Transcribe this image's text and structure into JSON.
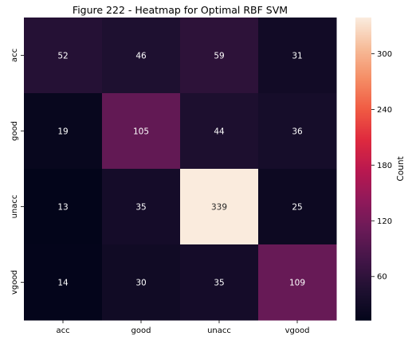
{
  "chart_data": {
    "type": "heatmap",
    "title": "Figure 222 - Heatmap for Optimal RBF SVM",
    "x_categories": [
      "acc",
      "good",
      "unacc",
      "vgood"
    ],
    "y_categories": [
      "acc",
      "good",
      "unacc",
      "vgood"
    ],
    "values": [
      [
        52,
        46,
        59,
        31
      ],
      [
        19,
        105,
        44,
        36
      ],
      [
        13,
        35,
        339,
        25
      ],
      [
        14,
        30,
        35,
        109
      ]
    ],
    "colorbar": {
      "label": "Count",
      "ticks": [
        60,
        120,
        180,
        240,
        300
      ],
      "range": [
        13,
        339
      ],
      "colormap": "rocket"
    },
    "xlabel": "",
    "ylabel": ""
  }
}
